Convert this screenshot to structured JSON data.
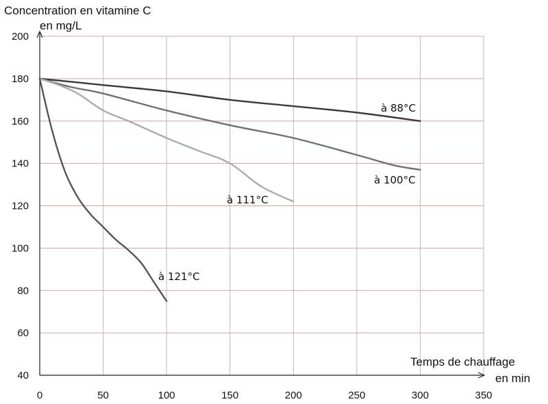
{
  "chart_data": {
    "type": "line",
    "ylabel_line1": "Concentration en vitamine C",
    "ylabel_line2": "en mg/L",
    "xlabel_line1": "Temps de chauffage",
    "xlabel_line2": "en min",
    "xlim": [
      0,
      350
    ],
    "ylim": [
      40,
      200
    ],
    "xticks": [
      0,
      50,
      100,
      150,
      200,
      250,
      300,
      350
    ],
    "yticks": [
      40,
      60,
      80,
      100,
      120,
      140,
      160,
      180,
      200
    ],
    "grid": true,
    "series": [
      {
        "name": "à 88°C",
        "color": "#3a3a3a",
        "x": [
          0,
          50,
          100,
          150,
          200,
          250,
          300
        ],
        "y": [
          180,
          177,
          174,
          170,
          167,
          164,
          160
        ]
      },
      {
        "name": "à 100°C",
        "color": "#707070",
        "x": [
          0,
          25,
          50,
          100,
          150,
          200,
          250,
          280,
          300
        ],
        "y": [
          180,
          176,
          173,
          165,
          158,
          152,
          144,
          139,
          137
        ]
      },
      {
        "name": "à 111°C",
        "color": "#ababab",
        "x": [
          0,
          15,
          30,
          50,
          70,
          100,
          125,
          150,
          175,
          200
        ],
        "y": [
          180,
          177,
          173,
          165,
          160,
          152,
          146,
          140,
          129,
          122
        ]
      },
      {
        "name": "à 121°C",
        "color": "#555555",
        "x": [
          0,
          10,
          20,
          30,
          40,
          50,
          60,
          70,
          80,
          90,
          100
        ],
        "y": [
          180,
          155,
          136,
          124,
          116,
          110,
          104,
          99,
          93,
          84,
          75
        ]
      }
    ]
  }
}
